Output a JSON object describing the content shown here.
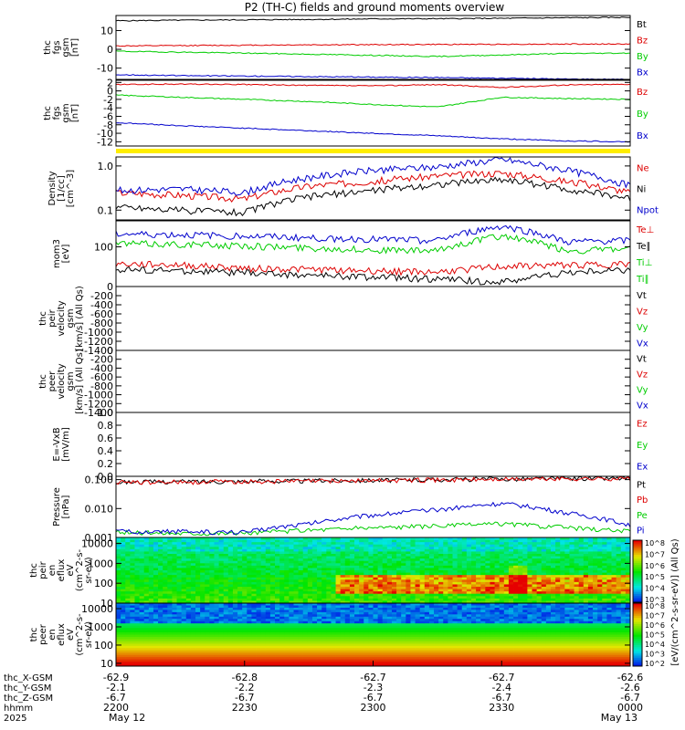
{
  "title": "P2 (TH-C) fields and ground moments overview",
  "colors": {
    "black": "#000000",
    "red": "#dd0000",
    "green": "#00cc00",
    "blue": "#0000cc",
    "yellow": "#ffee00"
  },
  "chart_data": {
    "type": "line",
    "time_axis": {
      "ticks": [
        "2200",
        "2230",
        "2300",
        "2330",
        "0000"
      ],
      "dates": [
        "May 12",
        "May 13"
      ],
      "row_labels": [
        "thc_X-GSM",
        "thc_Y-GSM",
        "thc_Z-GSM",
        "hhmm",
        "2025"
      ],
      "ephemeris": {
        "x": [
          "-62.9",
          "-62.8",
          "-62.7",
          "-62.7",
          "-62.6"
        ],
        "y": [
          "-2.1",
          "-2.2",
          "-2.3",
          "-2.4",
          "-2.6"
        ],
        "z": [
          "-6.7",
          "-6.7",
          "-6.7",
          "-6.7",
          "-6.7"
        ]
      }
    },
    "panels": [
      {
        "id": "fgs-gsm",
        "ylabel": [
          "thc",
          "fgs",
          "gsm",
          "[nT]"
        ],
        "scale": "linear",
        "ylim": [
          -16,
          18
        ],
        "ticks": [
          "10",
          "0",
          "-10"
        ],
        "tick_values": [
          10,
          0,
          -10
        ],
        "legend": [
          "Bt",
          "Bz",
          "By",
          "Bx"
        ],
        "series": [
          {
            "name": "Bt",
            "color": "black",
            "values": [
              15.2,
              15.5,
              15.7,
              15.9,
              16.2,
              16.3,
              16.5,
              16.8,
              17.0
            ]
          },
          {
            "name": "Bz",
            "color": "red",
            "values": [
              1.8,
              2.0,
              2.2,
              2.4,
              2.5,
              2.6,
              2.7,
              2.8,
              2.8
            ]
          },
          {
            "name": "By",
            "color": "green",
            "values": [
              -1.0,
              -1.5,
              -2.0,
              -2.6,
              -3.2,
              -3.8,
              -3.0,
              -2.2,
              -2.0
            ]
          },
          {
            "name": "Bx",
            "color": "blue",
            "values": [
              -13.5,
              -14.0,
              -14.2,
              -14.5,
              -14.8,
              -15.0,
              -15.4,
              -15.8,
              -16.0
            ]
          }
        ]
      },
      {
        "id": "fgs-dsl",
        "ylabel": [
          "thc",
          "fgs",
          "gsm",
          "[nT]"
        ],
        "scale": "linear",
        "ylim": [
          -13,
          2.5
        ],
        "ticks": [
          "2",
          "0",
          "-2",
          "-4",
          "-6",
          "-8",
          "-10",
          "-12"
        ],
        "tick_values": [
          2,
          0,
          -2,
          -4,
          -6,
          -8,
          -10,
          -12
        ],
        "legend": [
          "Bz",
          "By",
          "Bx"
        ],
        "series": [
          {
            "name": "Bz",
            "color": "red",
            "values": [
              1.5,
              1.6,
              1.5,
              1.3,
              1.2,
              1.5,
              0.8,
              1.4,
              1.6
            ]
          },
          {
            "name": "By",
            "color": "green",
            "values": [
              -1.0,
              -1.5,
              -2.0,
              -2.5,
              -3.2,
              -3.8,
              -1.5,
              -1.8,
              -2.0
            ]
          },
          {
            "name": "Bx",
            "color": "blue",
            "values": [
              -7.5,
              -8.2,
              -8.8,
              -9.4,
              -10.0,
              -10.6,
              -11.3,
              -11.8,
              -12.0
            ]
          }
        ]
      },
      {
        "id": "density",
        "ylabel": [
          "Density",
          "[1/cc]",
          "[cm^-3]"
        ],
        "scale": "log",
        "ylim": [
          0.06,
          1.6
        ],
        "ticks": [
          "1.0",
          "0.1"
        ],
        "tick_values": [
          1.0,
          0.1
        ],
        "legend": [
          "Ne",
          "Ni",
          "Npot"
        ],
        "series": [
          {
            "name": "Ne",
            "color": "red",
            "values": [
              0.25,
              0.22,
              0.18,
              0.35,
              0.45,
              0.6,
              0.7,
              0.45,
              0.25
            ]
          },
          {
            "name": "Ni",
            "color": "black",
            "values": [
              0.12,
              0.1,
              0.09,
              0.2,
              0.28,
              0.38,
              0.5,
              0.3,
              0.18
            ]
          },
          {
            "name": "Npot",
            "color": "blue",
            "values": [
              0.28,
              0.3,
              0.25,
              0.55,
              0.8,
              0.95,
              1.4,
              0.8,
              0.35
            ]
          }
        ]
      },
      {
        "id": "temperature",
        "ylabel": [
          "mom3",
          "[eV]"
        ],
        "scale": "log",
        "ylim": [
          12,
          400
        ],
        "ticks": [
          "100"
        ],
        "tick_values": [
          100
        ],
        "legend": [
          "Te⊥",
          "Te∥",
          "Ti⊥",
          "Ti∥"
        ],
        "series": [
          {
            "name": "Te⊥",
            "color": "red",
            "values": [
              40,
              38,
              32,
              30,
              28,
              26,
              35,
              38,
              40
            ]
          },
          {
            "name": "Te∥",
            "color": "black",
            "values": [
              30,
              28,
              25,
              22,
              20,
              18,
              15,
              25,
              30
            ]
          },
          {
            "name": "Ti⊥",
            "color": "green",
            "values": [
              120,
              115,
              105,
              95,
              85,
              80,
              180,
              80,
              90
            ]
          },
          {
            "name": "Ti∥",
            "color": "blue",
            "values": [
              200,
              190,
              180,
              160,
              150,
              140,
              300,
              130,
              140
            ]
          }
        ]
      },
      {
        "id": "peir-velocity",
        "ylabel": [
          "thc",
          "peir",
          "velocity",
          "gsm",
          "[km/s] (All Qs)"
        ],
        "scale": "linear",
        "ylim": [
          -1400,
          0
        ],
        "ticks": [
          "0",
          "-200",
          "-400",
          "-600",
          "-800",
          "-1000",
          "-1200",
          "-1400"
        ],
        "tick_values": [
          0,
          -200,
          -400,
          -600,
          -800,
          -1000,
          -1200,
          -1400
        ],
        "legend": [
          "Vt",
          "Vz",
          "Vy",
          "Vx"
        ],
        "series": []
      },
      {
        "id": "peer-velocity",
        "ylabel": [
          "thc",
          "peer",
          "velocity",
          "gsm",
          "[km/s] (All Qs)"
        ],
        "scale": "linear",
        "ylim": [
          -1400,
          0
        ],
        "ticks": [
          "0",
          "-200",
          "-400",
          "-600",
          "-800",
          "-1000",
          "-1200",
          "-1400"
        ],
        "tick_values": [
          0,
          -200,
          -400,
          -600,
          -800,
          -1000,
          -1200,
          -1400
        ],
        "legend": [
          "Vt",
          "Vz",
          "Vy",
          "Vx"
        ],
        "series": []
      },
      {
        "id": "efield",
        "ylabel": [
          "E=-VxB",
          "[mV/m]"
        ],
        "scale": "linear",
        "ylim": [
          0,
          1.0
        ],
        "ticks": [
          "1.0",
          "0.8",
          "0.6",
          "0.4",
          "0.2",
          "0.0"
        ],
        "tick_values": [
          1.0,
          0.8,
          0.6,
          0.4,
          0.2,
          0.0
        ],
        "legend": [
          "Ez",
          "Ey",
          "Ex"
        ],
        "series": []
      },
      {
        "id": "pressure",
        "ylabel": [
          "Pressure",
          "[nPa]"
        ],
        "scale": "log",
        "ylim": [
          0.001,
          0.13
        ],
        "ticks": [
          "0.100",
          "0.010",
          "0.001"
        ],
        "tick_values": [
          0.1,
          0.01,
          0.001
        ],
        "legend": [
          "Pt",
          "Pb",
          "Pe",
          "Pi"
        ],
        "series": [
          {
            "name": "Pt",
            "color": "black",
            "values": [
              0.082,
              0.085,
              0.088,
              0.092,
              0.096,
              0.1,
              0.105,
              0.11,
              0.112
            ]
          },
          {
            "name": "Pb",
            "color": "red",
            "values": [
              0.08,
              0.083,
              0.086,
              0.09,
              0.094,
              0.098,
              0.103,
              0.108,
              0.11
            ]
          },
          {
            "name": "Pe",
            "color": "green",
            "values": [
              0.0015,
              0.0014,
              0.0014,
              0.0018,
              0.0022,
              0.0025,
              0.003,
              0.0022,
              0.0016
            ]
          },
          {
            "name": "Pi",
            "color": "blue",
            "values": [
              0.0016,
              0.0016,
              0.0015,
              0.003,
              0.006,
              0.009,
              0.015,
              0.007,
              0.0025
            ]
          }
        ]
      },
      {
        "id": "peir-spec",
        "type": "heatmap",
        "ylabel": [
          "thc",
          "peir",
          "en",
          "eflux",
          "eV",
          "(cm^2-s-",
          "sr-eV)"
        ],
        "scale": "log",
        "ylim": [
          10,
          20000
        ],
        "ticks": [
          "10000",
          "1000",
          "100",
          "10"
        ],
        "tick_values": [
          10000,
          1000,
          100,
          10
        ]
      },
      {
        "id": "peer-spec",
        "type": "heatmap",
        "ylabel": [
          "thc",
          "peer",
          "en",
          "eflux",
          "eV",
          "(cm^2-s-",
          "sr-eV)"
        ],
        "scale": "log",
        "ylim": [
          7,
          20000
        ],
        "ticks": [
          "10000",
          "1000",
          "100",
          "10"
        ],
        "tick_values": [
          10000,
          1000,
          100,
          10
        ]
      }
    ],
    "colorbar": {
      "label": "[eV/(cm^2-s-sr-eV)] (All Qs)",
      "ticks_upper": [
        "10^8",
        "10^7",
        "10^6",
        "10^5",
        "10^4",
        "10^3"
      ],
      "ticks_lower": [
        "10^8",
        "10^7",
        "10^6",
        "10^5",
        "10^4",
        "10^3",
        "10^2"
      ]
    }
  }
}
